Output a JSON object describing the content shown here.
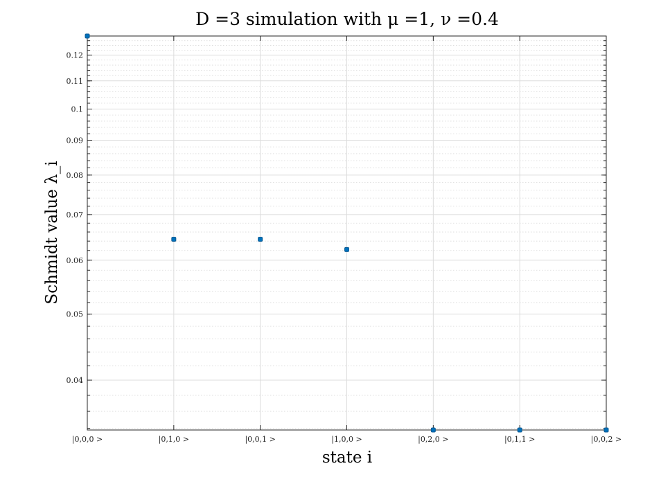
{
  "chart_data": {
    "type": "scatter",
    "title": "D =3 simulation with μ =1, ν =0.4",
    "xlabel": "state i",
    "ylabel": "Schmidt value λ_i",
    "categories": [
      "|0,0,0 >",
      "|0,1,0 >",
      "|0,0,1 >",
      "|1,0,0 >",
      "|0,2,0 >",
      "|0,1,1 >",
      "|0,0,2 >"
    ],
    "values": [
      0.128,
      0.0644,
      0.0644,
      0.0622,
      0.0338,
      0.0338,
      0.0338
    ],
    "yscale": "log",
    "ylim": [
      0.0338,
      0.128
    ],
    "yticks": [
      0.04,
      0.05,
      0.06,
      0.07,
      0.08,
      0.09,
      0.1,
      0.11,
      0.12
    ],
    "ytick_labels": [
      "0.04",
      "0.05",
      "0.06",
      "0.07",
      "0.08",
      "0.09",
      "0.1",
      "0.11",
      "0.12"
    ],
    "grid": true,
    "minor_grid": true,
    "marker_color": "#0072bd"
  }
}
